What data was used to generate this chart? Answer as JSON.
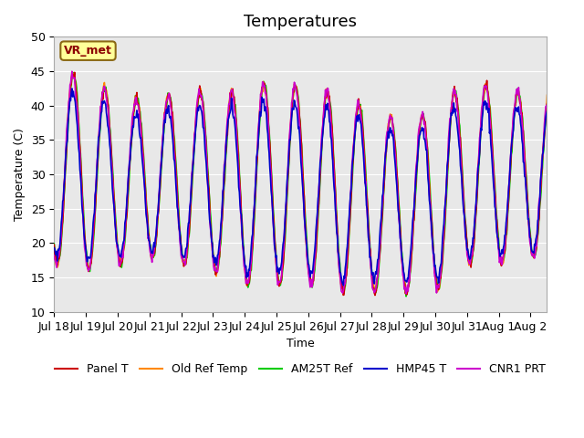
{
  "title": "Temperatures",
  "xlabel": "Time",
  "ylabel": "Temperature (C)",
  "annotation": "VR_met",
  "ylim": [
    10,
    50
  ],
  "xlim_days": [
    0,
    15.5
  ],
  "x_tick_labels": [
    "Jul 18",
    "Jul 19",
    "Jul 20",
    "Jul 21",
    "Jul 22",
    "Jul 23",
    "Jul 24",
    "Jul 25",
    "Jul 26",
    "Jul 27",
    "Jul 28",
    "Jul 29",
    "Jul 30",
    "Jul 31",
    "Aug 1",
    "Aug 2"
  ],
  "series_names": [
    "Panel T",
    "Old Ref Temp",
    "AM25T Ref",
    "HMP45 T",
    "CNR1 PRT"
  ],
  "series_colors": [
    "#cc0000",
    "#ff8800",
    "#00cc00",
    "#0000cc",
    "#cc00cc"
  ],
  "series_lw": [
    1.2,
    1.2,
    1.2,
    1.2,
    1.2
  ],
  "bg_color": "#e8e8e8",
  "fig_bg": "#ffffff",
  "grid_color": "#ffffff",
  "title_fontsize": 13,
  "axis_fontsize": 9,
  "legend_fontsize": 9,
  "yticks": [
    10,
    15,
    20,
    25,
    30,
    35,
    40,
    45,
    50
  ],
  "daily_amps": [
    27,
    29,
    24,
    23,
    25,
    26,
    28,
    30,
    28,
    29,
    26,
    25,
    26,
    27,
    25,
    24
  ],
  "daily_mins": [
    17,
    16,
    17,
    18,
    17,
    16,
    14,
    14,
    14,
    13,
    13,
    13,
    13,
    17,
    17,
    18
  ],
  "phase_shifts": [
    0.0,
    0.005,
    -0.01,
    0.02,
    0.015
  ],
  "noise_levels": [
    0.4,
    0.3,
    0.3,
    0.5,
    0.4
  ],
  "hmp_scale": 0.87,
  "hmp_mean": 25
}
